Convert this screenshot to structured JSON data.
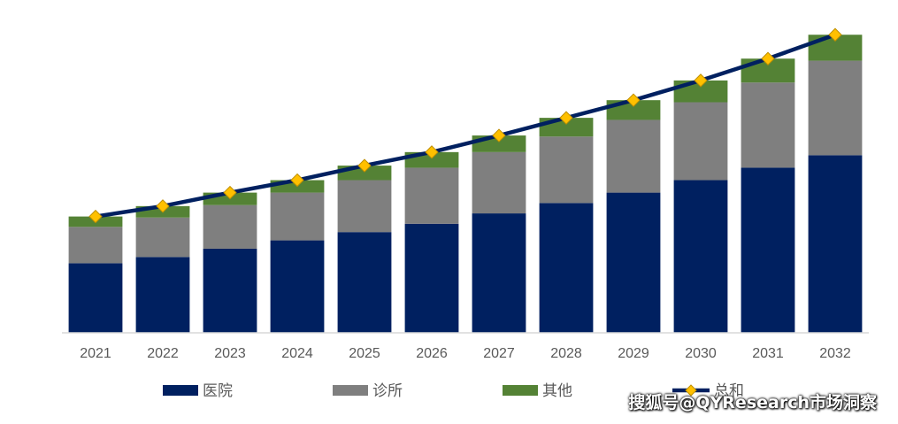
{
  "chart_data": {
    "type": "bar",
    "stacked": true,
    "categories": [
      "2021",
      "2022",
      "2023",
      "2024",
      "2025",
      "2026",
      "2027",
      "2028",
      "2029",
      "2030",
      "2031",
      "2032"
    ],
    "series": [
      {
        "name": "医院",
        "color": "#002060",
        "values": [
          67,
          73,
          81,
          89,
          97,
          105,
          115,
          125,
          135,
          147,
          159,
          171
        ]
      },
      {
        "name": "诊所",
        "color": "#7f7f7f",
        "values": [
          35,
          38,
          42,
          46,
          50,
          54,
          59,
          64,
          70,
          75,
          82,
          91
        ]
      },
      {
        "name": "其他",
        "color": "#548235",
        "values": [
          10,
          11,
          12,
          12,
          14,
          15,
          16,
          18,
          19,
          21,
          23,
          25
        ]
      }
    ],
    "line": {
      "name": "总和",
      "color": "#002060",
      "marker_color": "#ffc000",
      "values": [
        112,
        122,
        135,
        147,
        161,
        174,
        190,
        207,
        224,
        243,
        264,
        287
      ]
    },
    "ylim": [
      0,
      300
    ],
    "grid": false,
    "legend_position": "bottom"
  },
  "watermark": "搜狐号@QYResearch市场洞察"
}
